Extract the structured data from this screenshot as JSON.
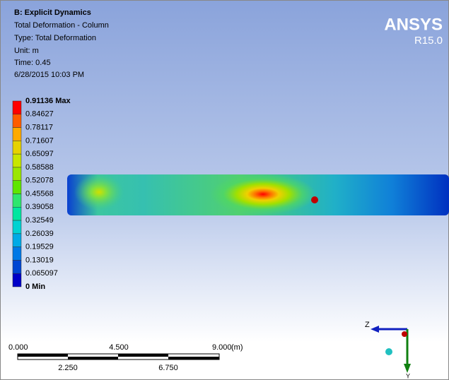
{
  "header": {
    "title": "B: Explicit Dynamics",
    "lines": [
      "Total Deformation - Column",
      "Type: Total Deformation",
      "Unit: m",
      "Time: 0.45",
      "6/28/2015 10:03 PM"
    ]
  },
  "logo": {
    "name": "ANSYS",
    "version": "R15.0"
  },
  "legend": {
    "entries": [
      "0.91136 Max",
      "0.84627",
      "0.78117",
      "0.71607",
      "0.65097",
      "0.58588",
      "0.52078",
      "0.45568",
      "0.39058",
      "0.32549",
      "0.26039",
      "0.19529",
      "0.13019",
      "0.065097",
      "0 Min"
    ],
    "colors": [
      "#ff0000",
      "#ff5c00",
      "#ffaa00",
      "#e6d200",
      "#c8e600",
      "#9be600",
      "#5fe600",
      "#2ee66e",
      "#00e6a0",
      "#00d2d2",
      "#00aae6",
      "#0078e6",
      "#0046d2",
      "#0000c8"
    ]
  },
  "scale_bar": {
    "top_labels": [
      "0.000",
      "4.500",
      "9.000"
    ],
    "unit": "(m)",
    "bottom_labels": [
      "2.250",
      "6.750"
    ]
  },
  "triad": {
    "axes": [
      "Z",
      "Y"
    ]
  }
}
